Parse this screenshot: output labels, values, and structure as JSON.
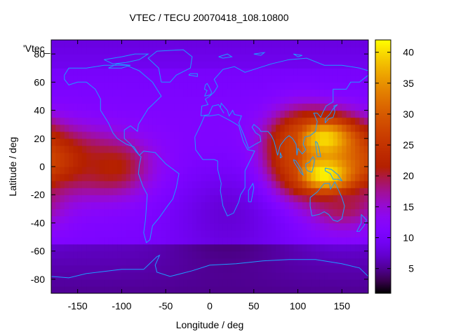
{
  "chart_data": {
    "type": "heatmap",
    "title": "VTEC / TECU 20070418_108.10800",
    "xlabel": "Longitude / deg",
    "ylabel": "Latitude / deg",
    "key_label": "'Vtec_",
    "xlim": [
      -180,
      180
    ],
    "ylim": [
      -90,
      90
    ],
    "x_ticks": [
      -150,
      -100,
      -50,
      0,
      50,
      100,
      150
    ],
    "y_ticks": [
      -80,
      -60,
      -40,
      -20,
      0,
      20,
      40,
      60,
      80
    ],
    "colorbar": {
      "min": 1,
      "max": 42,
      "ticks": [
        5,
        10,
        15,
        20,
        25,
        30,
        35,
        40
      ],
      "palette": "black-blue-purple-red-orange-yellow"
    },
    "grid": false,
    "coastlines": true,
    "features": [
      {
        "lon": -170,
        "lat": 5,
        "tecu": 24,
        "sigma_lon": 35,
        "sigma_lat": 15
      },
      {
        "lon": -110,
        "lat": 0,
        "tecu": 22,
        "sigma_lon": 30,
        "sigma_lat": 14
      },
      {
        "lon": 130,
        "lat": 20,
        "tecu": 40,
        "sigma_lon": 30,
        "sigma_lat": 12
      },
      {
        "lon": 130,
        "lat": -5,
        "tecu": 42,
        "sigma_lon": 28,
        "sigma_lat": 11
      },
      {
        "lon": 100,
        "lat": 10,
        "tecu": 28,
        "sigma_lon": 25,
        "sigma_lat": 18
      },
      {
        "lon": 150,
        "lat": -25,
        "tecu": 20,
        "sigma_lon": 30,
        "sigma_lat": 14
      }
    ]
  }
}
